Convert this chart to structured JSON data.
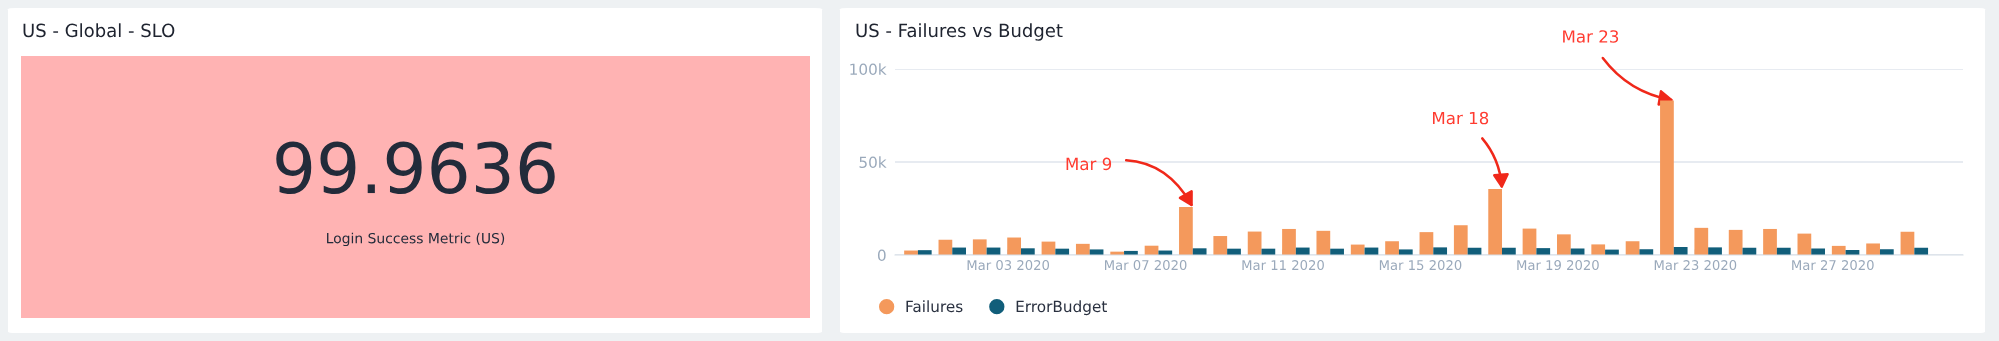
{
  "chart_data": [
    {
      "type": "other",
      "title": "US - Global - SLO",
      "color": "#ffb3b3",
      "annotations": [
        "99.9636",
        "Login Success Metric (US)"
      ]
    },
    {
      "type": "bar",
      "title": "US - Failures vs Budget",
      "x": [
        "2020-02-29T09:00",
        "2020-03-01T09:00",
        "2020-03-02T09:00",
        "2020-03-03T09:00",
        "2020-03-04T09:00",
        "2020-03-05T09:00",
        "2020-03-06T09:00",
        "2020-03-07T09:00",
        "2020-03-08T09:00",
        "2020-03-09T09:00",
        "2020-03-10T09:00",
        "2020-03-11T09:00",
        "2020-03-12T09:00",
        "2020-03-13T09:00",
        "2020-03-14T09:00",
        "2020-03-15T09:00",
        "2020-03-16T09:00",
        "2020-03-17T09:00",
        "2020-03-18T09:00",
        "2020-03-19T09:00",
        "2020-03-20T09:00",
        "2020-03-21T09:00",
        "2020-03-22T09:00",
        "2020-03-23T09:00",
        "2020-03-24T09:00",
        "2020-03-25T09:00",
        "2020-03-26T09:00",
        "2020-03-27T09:00",
        "2020-03-28T09:00",
        "2020-03-29T09:00"
      ],
      "series": [
        {
          "name": "Failures",
          "color": "#f4995c",
          "values": [
            2400,
            8200,
            8400,
            9400,
            7200,
            6000,
            1800,
            5000,
            25800,
            10200,
            12600,
            14000,
            13000,
            5600,
            7400,
            12300,
            16000,
            35500,
            14200,
            11100,
            5700,
            7400,
            83100,
            14600,
            13500,
            14000,
            11500,
            4900,
            6200,
            12500
          ]
        },
        {
          "name": "ErrorBudget",
          "color": "#115e7a",
          "values": [
            2600,
            4000,
            4000,
            3600,
            3400,
            3000,
            2200,
            2400,
            3600,
            3400,
            3400,
            4000,
            3400,
            4000,
            3000,
            4100,
            3900,
            3900,
            3700,
            3500,
            2900,
            3100,
            4300,
            4100,
            3900,
            3900,
            3500,
            2700,
            3100,
            3900
          ]
        }
      ],
      "xlim": [
        "2020-02-28T17:00",
        "2020-03-30T19:00"
      ],
      "xticks": [
        {
          "value": "2020-03-03",
          "label": "Mar 03 2020"
        },
        {
          "value": "2020-03-07",
          "label": "Mar 07 2020"
        },
        {
          "value": "2020-03-11",
          "label": "Mar 11 2020"
        },
        {
          "value": "2020-03-15",
          "label": "Mar 15 2020"
        },
        {
          "value": "2020-03-19",
          "label": "Mar 19 2020"
        },
        {
          "value": "2020-03-23",
          "label": "Mar 23 2020"
        },
        {
          "value": "2020-03-27",
          "label": "Mar 27 2020"
        }
      ],
      "ylim": [
        0,
        100000
      ],
      "yticks": [
        {
          "value": 0,
          "label": "0"
        },
        {
          "value": 50000,
          "label": "50k"
        },
        {
          "value": 100000,
          "label": "100k"
        }
      ],
      "grid": "y",
      "legend": "bottom left",
      "annotations": [
        {
          "text": "Mar 9",
          "x": "2020-03-08T09:00",
          "y": 25800
        },
        {
          "text": "Mar 18",
          "x": "2020-03-17T09:00",
          "y": 35500
        },
        {
          "text": "Mar 23",
          "x": "2020-03-22T09:00",
          "y": 83100
        }
      ]
    }
  ]
}
